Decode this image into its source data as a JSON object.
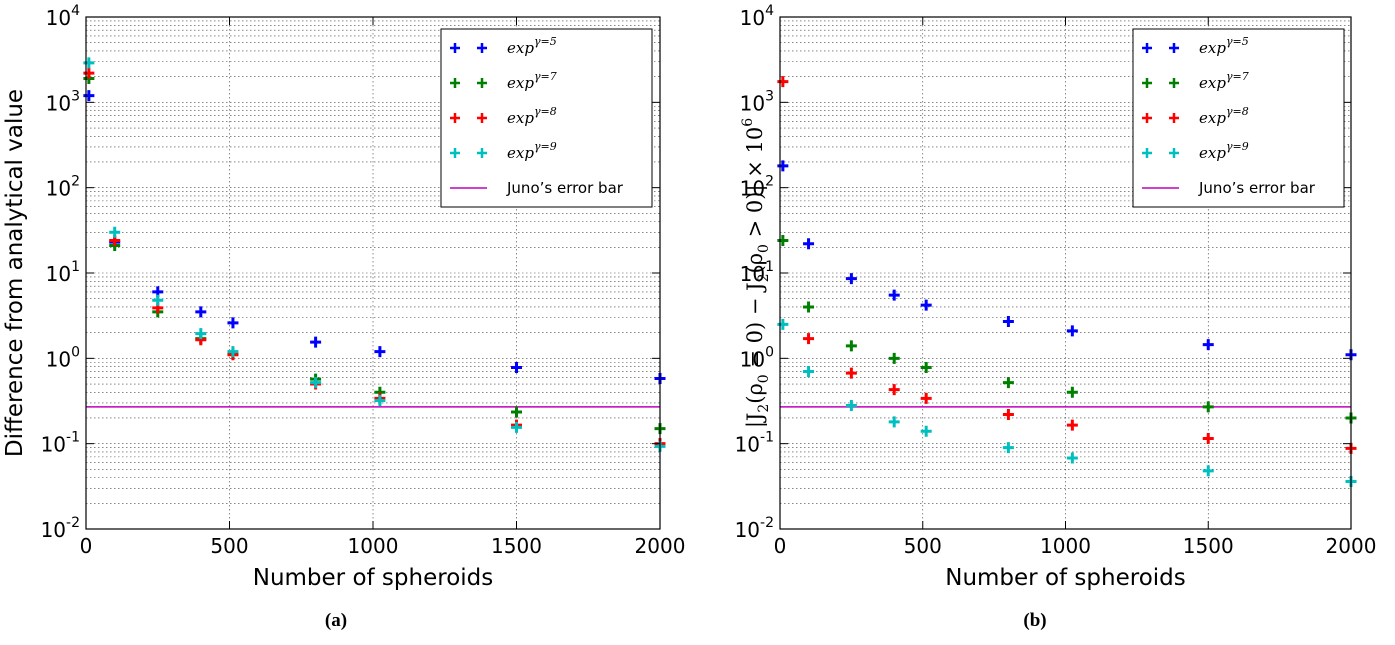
{
  "chart_data": [
    {
      "panel": "a",
      "type": "scatter",
      "caption": "(a)",
      "xlabel": "Number of spheroids",
      "ylabel": "Difference from analytical value",
      "xlim": [
        0,
        2000
      ],
      "ylim": [
        0.01,
        10000
      ],
      "yscale": "log",
      "grid": true,
      "legend_position": "top-right",
      "xticks": [
        "0",
        "500",
        "1000",
        "1500",
        "2000"
      ],
      "yticks": [
        {
          "base": "10",
          "exp": "4"
        },
        {
          "base": "10",
          "exp": "3"
        },
        {
          "base": "10",
          "exp": "2"
        },
        {
          "base": "10",
          "exp": "1"
        },
        {
          "base": "10",
          "exp": "0"
        },
        {
          "base": "10",
          "exp": "-1"
        },
        {
          "base": "10",
          "exp": "-2"
        }
      ],
      "x": [
        10,
        100,
        250,
        400,
        512,
        800,
        1024,
        1500,
        2000
      ],
      "series": [
        {
          "name_base": "exp",
          "name_sup": "γ=5",
          "color": "#0000ff",
          "values": [
            1200,
            23,
            6.0,
            3.5,
            2.6,
            1.55,
            1.2,
            0.78,
            0.58
          ]
        },
        {
          "name_base": "exp",
          "name_sup": "γ=7",
          "color": "#008000",
          "values": [
            1900,
            21,
            3.5,
            1.7,
            1.12,
            0.57,
            0.4,
            0.235,
            0.15
          ]
        },
        {
          "name_base": "exp",
          "name_sup": "γ=8",
          "color": "#ff0000",
          "values": [
            2200,
            24,
            3.9,
            1.65,
            1.1,
            0.5,
            0.34,
            0.165,
            0.1
          ]
        },
        {
          "name_base": "exp",
          "name_sup": "γ=9",
          "color": "#00bfbf",
          "values": [
            2900,
            30,
            4.8,
            1.95,
            1.2,
            0.52,
            0.32,
            0.155,
            0.093
          ]
        }
      ],
      "reference_line": {
        "name": "Juno’s error bar",
        "value": 0.27,
        "color": "#bf00bf"
      }
    },
    {
      "panel": "b",
      "type": "scatter",
      "caption": "(b)",
      "xlabel": "Number of spheroids",
      "ylabel_parts": [
        "|J",
        "2",
        "(ρ",
        "0",
        " = 0) − J",
        "2",
        "(ρ",
        "0",
        " > 0)| × 10",
        "6"
      ],
      "xlim": [
        0,
        2000
      ],
      "ylim": [
        0.01,
        10000
      ],
      "yscale": "log",
      "grid": true,
      "legend_position": "top-right",
      "xticks": [
        "0",
        "500",
        "1000",
        "1500",
        "2000"
      ],
      "yticks": [
        {
          "base": "10",
          "exp": "4"
        },
        {
          "base": "10",
          "exp": "3"
        },
        {
          "base": "10",
          "exp": "2"
        },
        {
          "base": "10",
          "exp": "1"
        },
        {
          "base": "10",
          "exp": "0"
        },
        {
          "base": "10",
          "exp": "-1"
        },
        {
          "base": "10",
          "exp": "-2"
        }
      ],
      "x": [
        10,
        100,
        250,
        400,
        512,
        800,
        1024,
        1500,
        2000
      ],
      "series": [
        {
          "name_base": "exp",
          "name_sup": "γ=5",
          "color": "#0000ff",
          "values": [
            180,
            22,
            8.6,
            5.5,
            4.2,
            2.7,
            2.1,
            1.45,
            1.1
          ]
        },
        {
          "name_base": "exp",
          "name_sup": "γ=7",
          "color": "#008000",
          "values": [
            24,
            4.0,
            1.4,
            1.0,
            0.78,
            0.52,
            0.4,
            0.27,
            0.2
          ]
        },
        {
          "name_base": "exp",
          "name_sup": "γ=8",
          "color": "#ff0000",
          "values": [
            1750,
            1.7,
            0.67,
            0.43,
            0.34,
            0.22,
            0.165,
            0.115,
            0.088
          ]
        },
        {
          "name_base": "exp",
          "name_sup": "γ=9",
          "color": "#00bfbf",
          "values": [
            2.5,
            0.7,
            0.28,
            0.18,
            0.14,
            0.09,
            0.068,
            0.048,
            0.036
          ]
        }
      ],
      "reference_line": {
        "name": "Juno’s error bar",
        "value": 0.27,
        "color": "#bf00bf"
      }
    }
  ]
}
